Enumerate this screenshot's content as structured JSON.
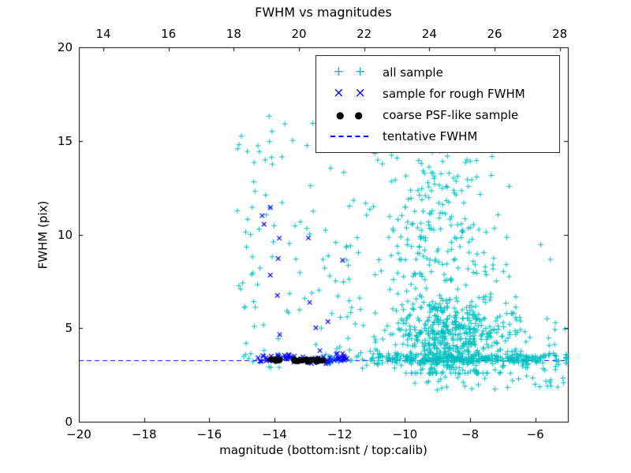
{
  "figure": {
    "background": "#ffffff",
    "border_color": "#000000"
  },
  "chart_data": {
    "type": "scatter",
    "title": "FWHM vs magnitudes",
    "xlabel": "magnitude (bottom:isnt / top:calib)",
    "ylabel": "FWHM (pix)",
    "xlim": [
      -20,
      -5
    ],
    "ylim": [
      0,
      20
    ],
    "x_ticks": [
      -20,
      -18,
      -16,
      -14,
      -12,
      -10,
      -8,
      -6
    ],
    "y_ticks": [
      0,
      5,
      10,
      15,
      20
    ],
    "top_ticks": [
      14,
      16,
      18,
      20,
      22,
      24,
      26,
      28
    ],
    "top_axis_offset": 33.25,
    "grid": false,
    "tentative_fwhm": 3.3,
    "legend": {
      "position": "upper right",
      "entries": [
        {
          "label": "all sample",
          "marker": "plus",
          "color": "#00bfbf"
        },
        {
          "label": "sample for rough FWHM",
          "marker": "x",
          "color": "#0000ff"
        },
        {
          "label": "coarse PSF-like sample",
          "marker": "dot",
          "color": "#000000"
        },
        {
          "label": "tentative FWHM",
          "marker": "dashed-line",
          "color": "#0000ff"
        }
      ]
    },
    "seed": 20240607,
    "points_encoding": "dense point clouds encoded as generative clusters, rendered with a seeded PRNG",
    "series": [
      {
        "name": "all sample",
        "marker": "plus",
        "color": "#00bfbf",
        "clusters": [
          {
            "n": 520,
            "x": {
              "type": "normal",
              "mu": -8.7,
              "sigma": 0.95,
              "min": -11.3,
              "max": -6.6
            },
            "y": {
              "type": "normal",
              "mu": 4.6,
              "sigma": 1.2,
              "min": 2.6,
              "max": 8.5
            }
          },
          {
            "n": 170,
            "x": {
              "type": "normal",
              "mu": -8.9,
              "sigma": 1.0,
              "min": -11.2,
              "max": -6.8
            },
            "y": {
              "type": "uniform",
              "min": 7.5,
              "max": 13.5
            }
          },
          {
            "n": 40,
            "x": {
              "type": "uniform",
              "min": -11.0,
              "max": -7.3
            },
            "y": {
              "type": "uniform",
              "min": 13.5,
              "max": 15.8
            }
          },
          {
            "n": 95,
            "x": {
              "type": "uniform",
              "min": -15.2,
              "max": -11.3
            },
            "y": {
              "type": "uniform",
              "min": 2.9,
              "max": 15.3
            }
          },
          {
            "n": 7,
            "x": {
              "type": "uniform",
              "min": -14.8,
              "max": -11.5
            },
            "y": {
              "type": "uniform",
              "min": 15.5,
              "max": 19.0
            }
          },
          {
            "n": 330,
            "x": {
              "type": "normal",
              "mu": -8.3,
              "sigma": 2.0,
              "min": -12.3,
              "max": -5.05
            },
            "y": {
              "type": "normal",
              "mu": 3.35,
              "sigma": 0.15,
              "min": 2.95,
              "max": 3.85
            }
          },
          {
            "n": 25,
            "x": {
              "type": "uniform",
              "min": -15.1,
              "max": -12.3
            },
            "y": {
              "type": "normal",
              "mu": 3.35,
              "sigma": 0.2,
              "min": 2.9,
              "max": 3.9
            }
          },
          {
            "n": 45,
            "x": {
              "type": "uniform",
              "min": -9.8,
              "max": -5.1
            },
            "y": {
              "type": "uniform",
              "min": 1.6,
              "max": 2.9
            }
          },
          {
            "n": 25,
            "x": {
              "type": "uniform",
              "min": -6.9,
              "max": -5.05
            },
            "y": {
              "type": "uniform",
              "min": 3.0,
              "max": 5.8
            }
          },
          {
            "n": 30,
            "x": {
              "type": "uniform",
              "min": -14.8,
              "max": -5.2
            },
            "y": {
              "type": "uniform",
              "min": 4.2,
              "max": 12.5
            }
          }
        ]
      },
      {
        "name": "sample for rough FWHM",
        "marker": "x",
        "color": "#0000ff",
        "clusters": [
          {
            "n": 60,
            "x": {
              "type": "uniform",
              "min": -14.55,
              "max": -11.75
            },
            "y": {
              "type": "normal",
              "mu": 3.4,
              "sigma": 0.12,
              "min": 3.1,
              "max": 3.8
            }
          },
          {
            "n": 13,
            "x": {
              "type": "uniform",
              "min": -14.4,
              "max": -11.8
            },
            "y": {
              "type": "uniform",
              "min": 4.6,
              "max": 12.3
            }
          }
        ]
      },
      {
        "name": "coarse PSF-like sample",
        "marker": "dot",
        "color": "#000000",
        "clusters": [
          {
            "n": 26,
            "x": {
              "type": "uniform",
              "min": -14.35,
              "max": -12.5
            },
            "y": {
              "type": "normal",
              "mu": 3.28,
              "sigma": 0.06,
              "min": 3.1,
              "max": 3.45
            }
          }
        ]
      },
      {
        "name": "tentative FWHM",
        "marker": "dashed-line",
        "color": "#0000ff",
        "y": 3.3
      }
    ]
  }
}
